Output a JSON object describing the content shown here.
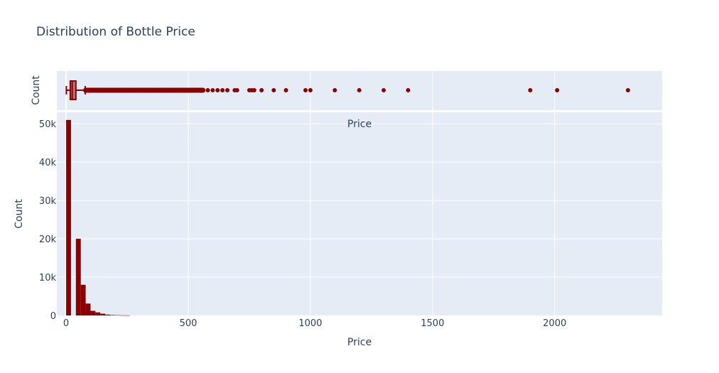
{
  "chart_data": {
    "type": "histogram",
    "title": "Distribution of Bottle Price",
    "xlabel": "Price",
    "ylabel": "Count",
    "marginal_title": "Price",
    "marginal_ylabel": "Count",
    "color": "#8b0000",
    "plot_background": "#e5ecf6",
    "xlim": [
      -38,
      2440
    ],
    "ylim": [
      0,
      53000
    ],
    "x_ticks": [
      0,
      500,
      1000,
      1500,
      2000
    ],
    "x_tick_labels": [
      "0",
      "500",
      "1000",
      "1500",
      "2000"
    ],
    "y_ticks": [
      0,
      10000,
      20000,
      30000,
      40000,
      50000
    ],
    "y_tick_labels": [
      "0",
      "10k",
      "20k",
      "30k",
      "40k",
      "50k"
    ],
    "histogram": {
      "bin_width": 20,
      "bins": [
        {
          "start": 0,
          "count": 51000
        },
        {
          "start": 40,
          "count": 20000
        },
        {
          "start": 60,
          "count": 8000
        },
        {
          "start": 80,
          "count": 3100
        },
        {
          "start": 100,
          "count": 1200
        },
        {
          "start": 120,
          "count": 800
        },
        {
          "start": 140,
          "count": 450
        },
        {
          "start": 160,
          "count": 220
        },
        {
          "start": 180,
          "count": 120
        },
        {
          "start": 200,
          "count": 70
        },
        {
          "start": 220,
          "count": 40
        },
        {
          "start": 240,
          "count": 25
        }
      ]
    },
    "boxplot": {
      "min": 1,
      "q1": 17,
      "median": 25,
      "q3": 40,
      "upper_fence": 78,
      "outliers": [
        80,
        100,
        120,
        150,
        180,
        200,
        220,
        250,
        280,
        300,
        320,
        340,
        360,
        380,
        400,
        420,
        440,
        460,
        480,
        500,
        520,
        540,
        550,
        580,
        600,
        620,
        640,
        660,
        690,
        700,
        750,
        760,
        770,
        800,
        850,
        900,
        980,
        1000,
        1100,
        1200,
        1300,
        1400,
        1900,
        2010,
        2300
      ]
    }
  }
}
